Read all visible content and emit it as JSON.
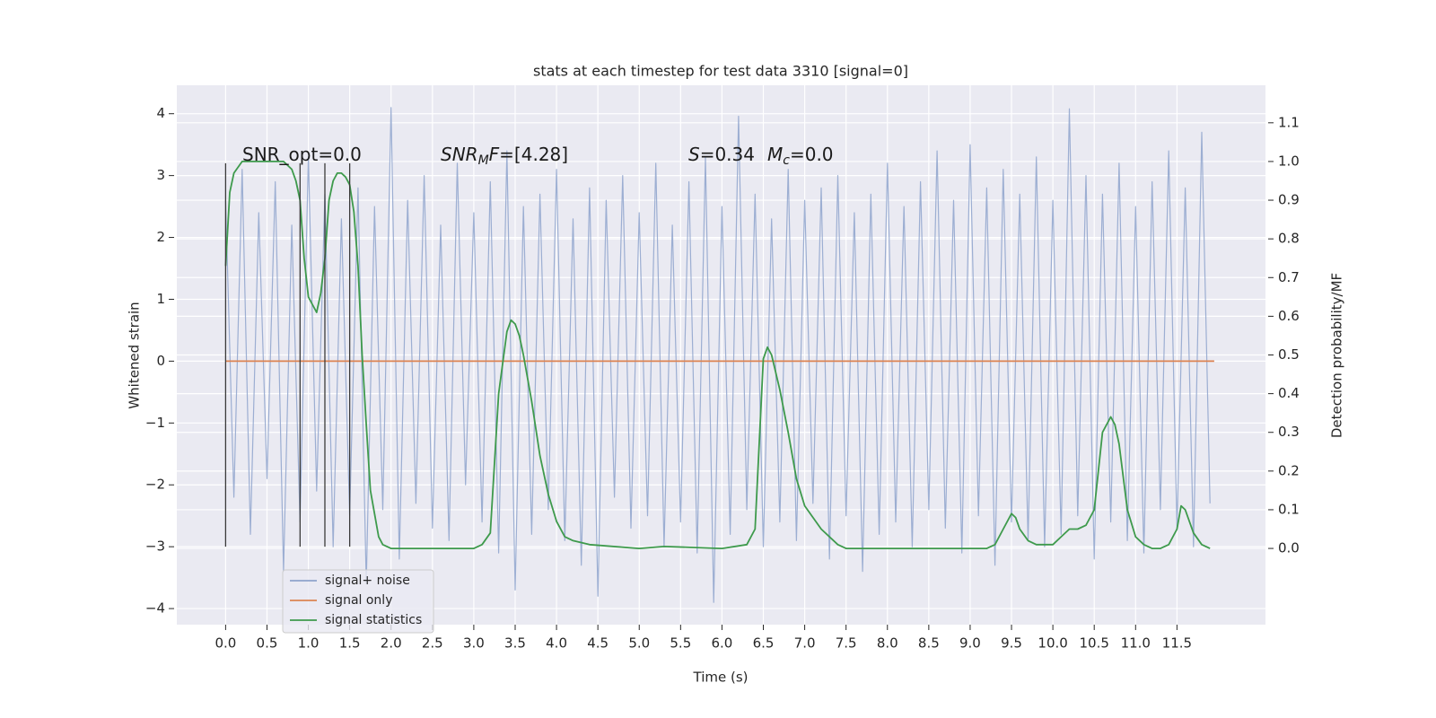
{
  "chart_data": {
    "type": "line",
    "title": "stats at each timestep for test data 3310 [signal=0]",
    "x_label": "Time (s)",
    "y_label": "Whitened strain",
    "y2_label": "Detection probability/MF",
    "annotations": [
      [
        "SNR_opt=0.0"
      ],
      [
        "SNR",
        "M",
        "F",
        "=[4.28]"
      ],
      [
        "S",
        "=0.34",
        "M",
        "c",
        "=0.0"
      ]
    ],
    "grid": true,
    "legend": "lower left",
    "xlim": [
      -0.59,
      12.57
    ],
    "ylim": [
      -4.26,
      4.46
    ],
    "y2lim": [
      -0.197,
      1.197
    ],
    "xticks": [
      {
        "value": 0,
        "label": "0.0"
      },
      {
        "value": 0.5,
        "label": "0.5"
      },
      {
        "value": 1,
        "label": "1.0"
      },
      {
        "value": 1.5,
        "label": "1.5"
      },
      {
        "value": 2,
        "label": "2.0"
      },
      {
        "value": 2.5,
        "label": "2.5"
      },
      {
        "value": 3,
        "label": "3.0"
      },
      {
        "value": 3.5,
        "label": "3.5"
      },
      {
        "value": 4,
        "label": "4.0"
      },
      {
        "value": 4.5,
        "label": "4.5"
      },
      {
        "value": 5,
        "label": "5.0"
      },
      {
        "value": 5.5,
        "label": "5.5"
      },
      {
        "value": 6,
        "label": "6.0"
      },
      {
        "value": 6.5,
        "label": "6.5"
      },
      {
        "value": 7,
        "label": "7.0"
      },
      {
        "value": 7.5,
        "label": "7.5"
      },
      {
        "value": 8,
        "label": "8.0"
      },
      {
        "value": 8.5,
        "label": "8.5"
      },
      {
        "value": 9,
        "label": "9.0"
      },
      {
        "value": 9.5,
        "label": "9.5"
      },
      {
        "value": 10,
        "label": "10.0"
      },
      {
        "value": 10.5,
        "label": "10.5"
      },
      {
        "value": 11,
        "label": "11.0"
      },
      {
        "value": 11.5,
        "label": "11.5"
      }
    ],
    "yticks": [
      {
        "value": -4,
        "label": "−4"
      },
      {
        "value": -3,
        "label": "−3"
      },
      {
        "value": -2,
        "label": "−2"
      },
      {
        "value": -1,
        "label": "−1"
      },
      0,
      1,
      2,
      3,
      4
    ],
    "y2ticks": [
      {
        "value": 0,
        "label": "0.0"
      },
      {
        "value": 0.1,
        "label": "0.1"
      },
      {
        "value": 0.2,
        "label": "0.2"
      },
      {
        "value": 0.3,
        "label": "0.3"
      },
      {
        "value": 0.4,
        "label": "0.4"
      },
      {
        "value": 0.5,
        "label": "0.5"
      },
      {
        "value": 0.6,
        "label": "0.6"
      },
      {
        "value": 0.7,
        "label": "0.7"
      },
      {
        "value": 0.8,
        "label": "0.8"
      },
      {
        "value": 0.9,
        "label": "0.9"
      },
      {
        "value": 1,
        "label": "1.0"
      },
      {
        "value": 1.1,
        "label": "1.1"
      }
    ],
    "vlines": {
      "x": [
        0,
        0.9,
        1.2,
        1.5
      ],
      "ymin": -3,
      "ymax": 3.2,
      "color": "#3a3a3a"
    },
    "series": [
      {
        "name": "signal+ noise",
        "color": "#8ea3cc",
        "x": [
          0,
          0.1,
          0.2,
          0.3,
          0.4,
          0.5,
          0.6,
          0.7,
          0.8,
          0.9,
          1,
          1.1,
          1.2,
          1.3,
          1.4,
          1.5,
          1.6,
          1.7,
          1.8,
          1.9,
          2,
          2.1,
          2.2,
          2.3,
          2.4,
          2.5,
          2.6,
          2.7,
          2.8,
          2.9,
          3,
          3.1,
          3.2,
          3.3,
          3.4,
          3.5,
          3.6,
          3.7,
          3.8,
          3.9,
          4,
          4.1,
          4.2,
          4.3,
          4.4,
          4.5,
          4.6,
          4.7,
          4.8,
          4.9,
          5,
          5.1,
          5.2,
          5.3,
          5.4,
          5.5,
          5.6,
          5.7,
          5.8,
          5.9,
          6,
          6.1,
          6.2,
          6.3,
          6.4,
          6.5,
          6.6,
          6.7,
          6.8,
          6.9,
          7,
          7.1,
          7.2,
          7.3,
          7.4,
          7.5,
          7.6,
          7.7,
          7.8,
          7.9,
          8,
          8.1,
          8.2,
          8.3,
          8.4,
          8.5,
          8.6,
          8.7,
          8.8,
          8.9,
          9,
          9.1,
          9.2,
          9.3,
          9.4,
          9.5,
          9.6,
          9.7,
          9.8,
          9.9,
          10,
          10.1,
          10.2,
          10.3,
          10.4,
          10.5,
          10.6,
          10.7,
          10.8,
          10.9,
          11,
          11.1,
          11.2,
          11.3,
          11.4,
          11.5,
          11.6,
          11.7,
          11.8,
          11.9
        ],
        "values": [
          2.6,
          -2.2,
          3.1,
          -2.8,
          2.4,
          -1.9,
          2.9,
          -3.4,
          2.2,
          -2.6,
          3.3,
          -2.1,
          2.7,
          -3.0,
          2.3,
          -2.5,
          2.8,
          -3.6,
          2.5,
          -2.4,
          4.1,
          -3.2,
          2.6,
          -2.3,
          3.0,
          -2.7,
          2.2,
          -2.9,
          3.2,
          -2.0,
          2.4,
          -2.6,
          2.9,
          -3.1,
          3.4,
          -3.7,
          2.5,
          -2.8,
          2.7,
          -2.4,
          3.1,
          -2.9,
          2.3,
          -3.3,
          2.8,
          -3.8,
          2.6,
          -2.2,
          3.0,
          -2.7,
          2.4,
          -2.5,
          3.2,
          -3.0,
          2.2,
          -2.6,
          2.9,
          -3.1,
          3.3,
          -3.9,
          2.5,
          -2.8,
          3.96,
          -2.4,
          2.7,
          -3.0,
          2.3,
          -2.6,
          3.1,
          -2.9,
          2.6,
          -2.3,
          2.8,
          -3.2,
          3.0,
          -2.5,
          2.4,
          -3.4,
          2.7,
          -2.8,
          3.2,
          -2.6,
          2.5,
          -3.0,
          2.9,
          -2.4,
          3.4,
          -2.7,
          2.6,
          -3.1,
          3.5,
          -2.5,
          2.8,
          -3.3,
          3.1,
          -2.6,
          2.7,
          -2.9,
          3.3,
          -3.0,
          2.6,
          -2.8,
          4.08,
          -2.5,
          3.0,
          -3.2,
          2.7,
          -2.6,
          3.2,
          -2.9,
          2.5,
          -3.1,
          2.9,
          -2.4,
          3.4,
          -2.7,
          2.8,
          -3.0,
          3.7,
          -2.3
        ]
      },
      {
        "name": "signal only",
        "color": "#dd8452",
        "x": [
          0,
          11.95
        ],
        "values": [
          0,
          0
        ]
      },
      {
        "name": "signal statistics",
        "color": "#3e9a4c",
        "axis": "y2",
        "x": [
          0,
          0.05,
          0.1,
          0.2,
          0.5,
          0.7,
          0.8,
          0.85,
          0.9,
          0.95,
          1,
          1.05,
          1.1,
          1.15,
          1.2,
          1.25,
          1.3,
          1.35,
          1.4,
          1.45,
          1.5,
          1.55,
          1.6,
          1.65,
          1.7,
          1.75,
          1.8,
          1.85,
          1.9,
          2,
          2.5,
          3,
          3.1,
          3.2,
          3.3,
          3.4,
          3.45,
          3.5,
          3.55,
          3.6,
          3.7,
          3.8,
          3.9,
          4,
          4.1,
          4.2,
          4.4,
          5,
          5.3,
          6,
          6.3,
          6.4,
          6.5,
          6.55,
          6.6,
          6.7,
          6.8,
          6.9,
          7,
          7.2,
          7.4,
          7.5,
          8,
          9,
          9.2,
          9.3,
          9.4,
          9.5,
          9.55,
          9.6,
          9.7,
          9.8,
          10,
          10.1,
          10.2,
          10.3,
          10.4,
          10.5,
          10.6,
          10.7,
          10.75,
          10.8,
          10.9,
          11,
          11.1,
          11.2,
          11.3,
          11.4,
          11.5,
          11.55,
          11.6,
          11.7,
          11.8,
          11.9
        ],
        "values": [
          0.73,
          0.92,
          0.97,
          1.0,
          1.0,
          1.0,
          0.98,
          0.95,
          0.9,
          0.75,
          0.65,
          0.63,
          0.61,
          0.66,
          0.75,
          0.9,
          0.95,
          0.97,
          0.97,
          0.96,
          0.94,
          0.87,
          0.73,
          0.5,
          0.32,
          0.15,
          0.09,
          0.03,
          0.01,
          0.0,
          0.0,
          0.0,
          0.01,
          0.04,
          0.4,
          0.56,
          0.59,
          0.58,
          0.55,
          0.5,
          0.38,
          0.24,
          0.14,
          0.07,
          0.03,
          0.02,
          0.01,
          0.0,
          0.005,
          0.0,
          0.01,
          0.05,
          0.49,
          0.52,
          0.5,
          0.41,
          0.3,
          0.18,
          0.11,
          0.05,
          0.01,
          0.0,
          0.0,
          0.0,
          0.0,
          0.01,
          0.05,
          0.09,
          0.08,
          0.05,
          0.02,
          0.01,
          0.01,
          0.03,
          0.05,
          0.05,
          0.06,
          0.1,
          0.3,
          0.34,
          0.32,
          0.27,
          0.1,
          0.03,
          0.01,
          0.0,
          0.0,
          0.01,
          0.05,
          0.11,
          0.1,
          0.04,
          0.01,
          0.0
        ]
      }
    ]
  }
}
